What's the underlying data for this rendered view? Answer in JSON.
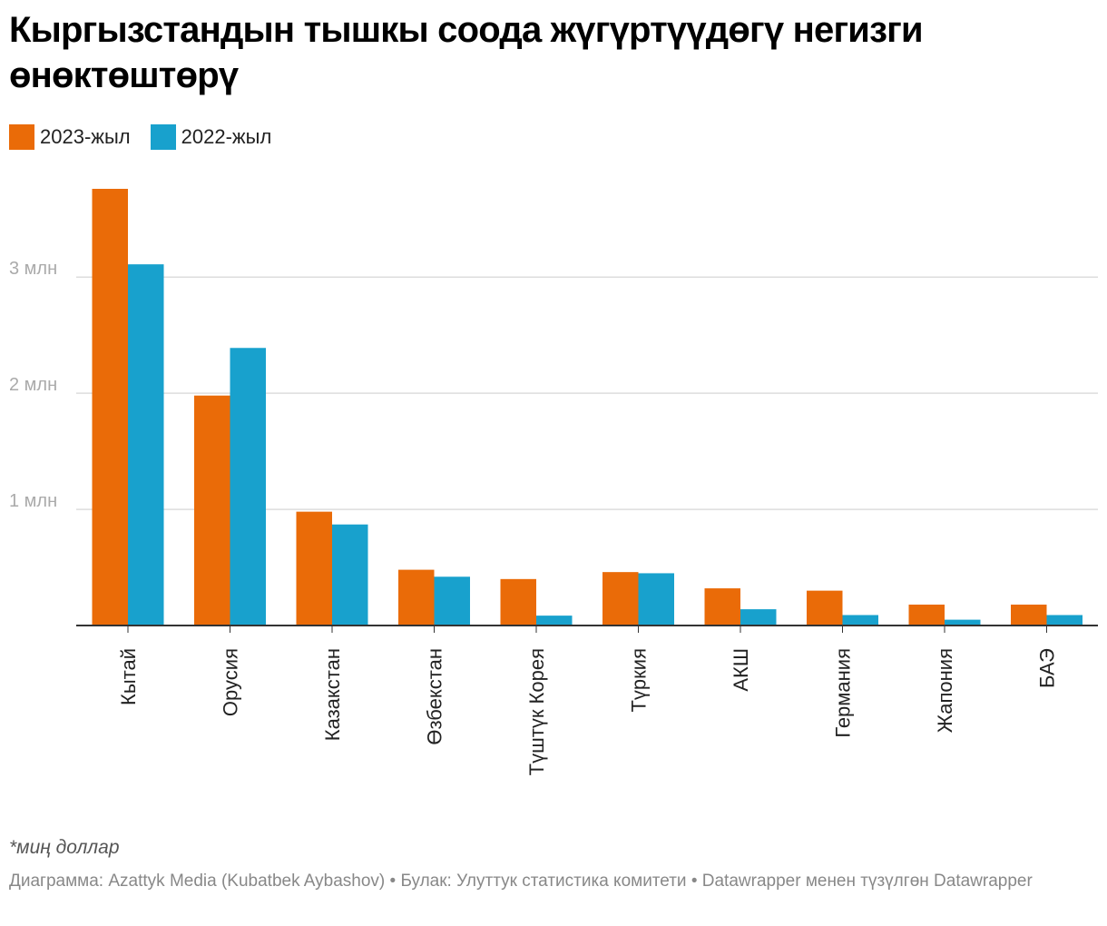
{
  "title": "Кыргызстандын тышкы соода жүгүртүүдөгү негизги өнөктөштөрү",
  "legend": [
    {
      "label": "2023-жыл",
      "color": "#ea6b08"
    },
    {
      "label": "2022-жыл",
      "color": "#18a1cd"
    }
  ],
  "footnote": "*миң доллар",
  "credits": "Диаграмма: Azattyk Media (Kubatbek Aybashov) • Булак: Улуттук статистика комитети • Datawrapper менен түзүлгөн Datawrapper",
  "chart_data": {
    "type": "bar",
    "categories": [
      "Кытай",
      "Орусия",
      "Казакстан",
      "Өзбекстан",
      "Түштүк Корея",
      "Түркия",
      "АКШ",
      "Германия",
      "Жапония",
      "БАЭ"
    ],
    "series": [
      {
        "name": "2023-жыл",
        "color": "#ea6b08",
        "values": [
          3760000,
          1980000,
          980000,
          480000,
          400000,
          460000,
          320000,
          300000,
          180000,
          180000
        ]
      },
      {
        "name": "2022-жыл",
        "color": "#18a1cd",
        "values": [
          3110000,
          2390000,
          870000,
          420000,
          85000,
          450000,
          140000,
          90000,
          50000,
          90000
        ]
      }
    ],
    "yticks": [
      {
        "value": 1000000,
        "label": "1 млн"
      },
      {
        "value": 2000000,
        "label": "2 млн"
      },
      {
        "value": 3000000,
        "label": "3 млн"
      }
    ],
    "ylim": [
      0,
      3760000
    ],
    "grid": true
  }
}
